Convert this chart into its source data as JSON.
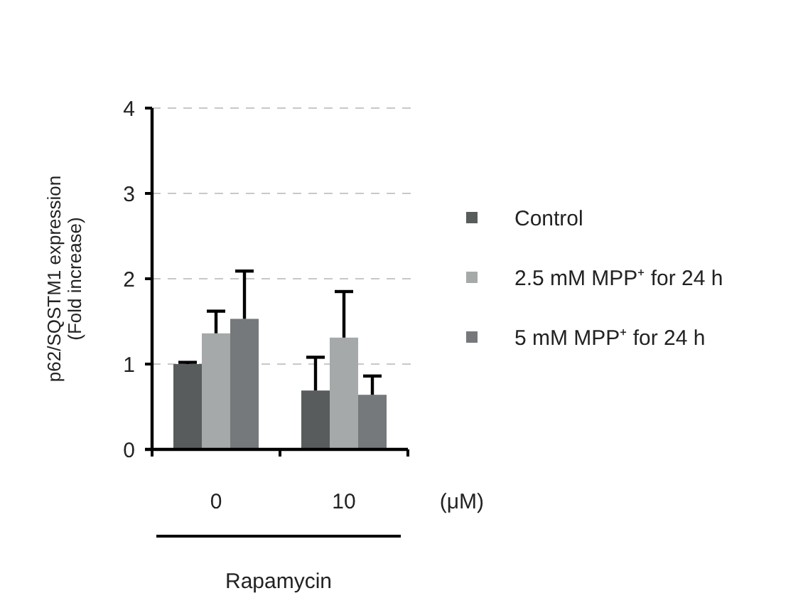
{
  "chart_data": {
    "type": "bar",
    "categories": [
      "0",
      "10"
    ],
    "series": [
      {
        "name": "Control",
        "color": "#585c5d",
        "values": [
          1.0,
          0.69
        ],
        "errors": [
          [
            1.0,
            1.02
          ],
          [
            0.69,
            1.08
          ]
        ]
      },
      {
        "name": "2.5 mM MPP⁺ for 24 h",
        "color": "#a6a9aa",
        "values": [
          1.36,
          1.31
        ],
        "errors": [
          [
            1.36,
            1.62
          ],
          [
            1.31,
            1.85
          ]
        ]
      },
      {
        "name": "5 mM MPP⁺ for 24 h",
        "color": "#75797b",
        "values": [
          1.53,
          0.64
        ],
        "errors": [
          [
            1.53,
            2.09
          ],
          [
            0.64,
            0.86
          ]
        ]
      }
    ],
    "ylabel": "p62/SQSTM1 expression\n(Fold increase)",
    "xlabel": "Rapamycin",
    "annotations": [
      "(μM)"
    ],
    "ylim": [
      0,
      4
    ],
    "yticks": [
      0,
      1,
      2,
      3,
      4
    ],
    "grid": "y",
    "legend": "right"
  }
}
